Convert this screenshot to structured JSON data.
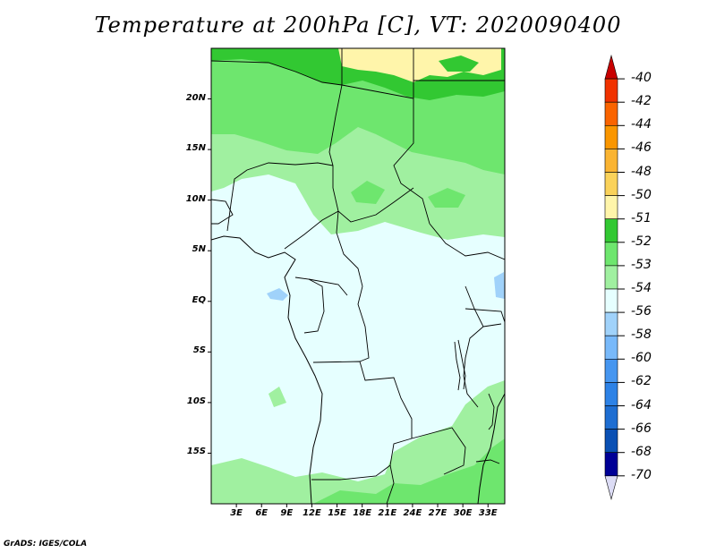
{
  "title": "Temperature at 200hPa [C], VT: 2020090400",
  "credit": "GrADS: IGES/COLA",
  "lat_labels": [
    "20N",
    "15N",
    "10N",
    "5N",
    "EQ",
    "5S",
    "10S",
    "15S"
  ],
  "lat_values": [
    20,
    15,
    10,
    5,
    0,
    -5,
    -10,
    -15
  ],
  "lon_labels": [
    "3E",
    "6E",
    "9E",
    "12E",
    "15E",
    "18E",
    "21E",
    "24E",
    "27E",
    "30E",
    "33E"
  ],
  "lon_values": [
    3,
    6,
    9,
    12,
    15,
    18,
    21,
    24,
    27,
    30,
    33
  ],
  "map_extent": {
    "lon": [
      0,
      35
    ],
    "lat": [
      -20,
      25
    ]
  },
  "colorbar": {
    "labels": [
      "-40",
      "-42",
      "-44",
      "-46",
      "-48",
      "-50",
      "-51",
      "-52",
      "-53",
      "-54",
      "-56",
      "-58",
      "-60",
      "-62",
      "-64",
      "-66",
      "-68",
      "-70"
    ],
    "colors": [
      "#c80000",
      "#f03200",
      "#fa6400",
      "#fa9600",
      "#fab432",
      "#fad25a",
      "#fff5aa",
      "#32c832",
      "#6ee66e",
      "#a0f0a0",
      "#e6ffff",
      "#a0d2fa",
      "#78b9fa",
      "#4696f0",
      "#2d82e6",
      "#1e6ed2",
      "#0a50b4",
      "#000096",
      "#dcdcf5"
    ]
  },
  "fields": {
    "ocean_color": "#e6ffff",
    "lake_color": "#a0d2fa"
  }
}
